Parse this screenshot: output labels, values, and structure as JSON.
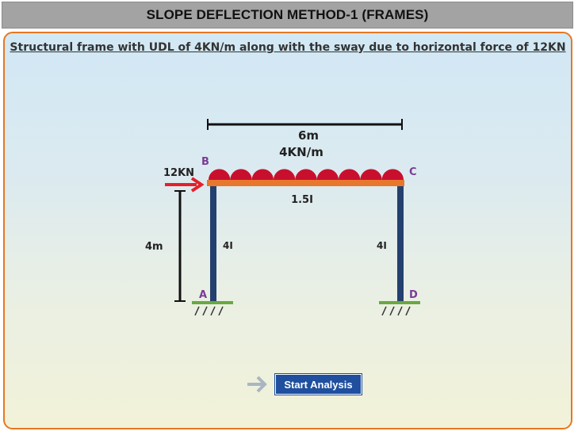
{
  "header": {
    "title": "SLOPE DEFLECTION METHOD-1 (FRAMES)"
  },
  "main": {
    "subtitle": "Structural frame with UDL of 4KN/m along with the sway due to horizontal force of 12KN",
    "start_button": "Start Analysis",
    "next_icon": "arrow-right-icon"
  },
  "diagram": {
    "span_label": "6m",
    "udl_label": "4KN/m",
    "force_label": "12KN",
    "height_label": "4m",
    "beam_inertia": "1.5I",
    "col_left_inertia": "4I",
    "col_right_inertia": "4I",
    "node_a": "A",
    "node_b": "B",
    "node_c": "C",
    "node_d": "D",
    "udl_count": 9,
    "colors": {
      "node_label": "#7a3b96",
      "load": "#c8102e",
      "beam": "#e8772e",
      "column": "#23406e",
      "support": "#6aa840",
      "force": "#e4202a"
    }
  }
}
